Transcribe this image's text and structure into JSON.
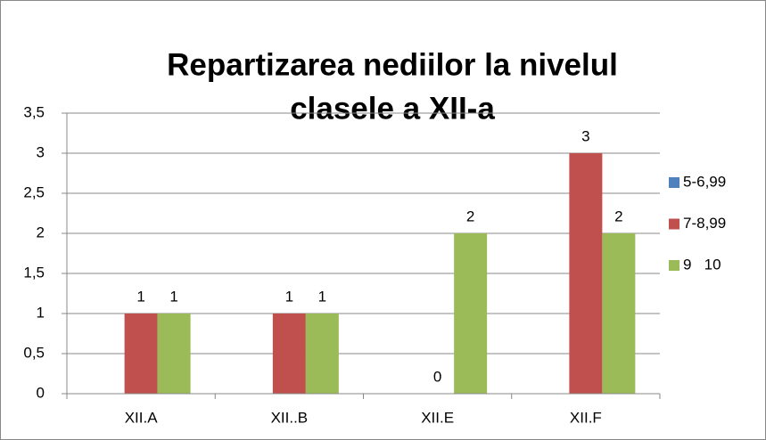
{
  "chart_data": {
    "type": "bar",
    "title": [
      "Repartizarea nediilor la nivelul",
      "clasele a XII-a"
    ],
    "categories": [
      "XII.A",
      "XII..B",
      "XII.E",
      "XII.F"
    ],
    "series": [
      {
        "name": "5-6,99",
        "color": "#4f81bd",
        "values": [
          null,
          null,
          null,
          null
        ]
      },
      {
        "name": "7-8,99",
        "color": "#c0504d",
        "values": [
          1,
          1,
          0,
          3
        ]
      },
      {
        "name": "9   10",
        "color": "#9bbb59",
        "values": [
          1,
          1,
          2,
          2
        ]
      }
    ],
    "ylim": [
      0,
      3.5
    ],
    "yticks": [
      0,
      {
        "value": 0.5,
        "label": "0,5"
      },
      1,
      {
        "value": 1.5,
        "label": "1,5"
      },
      2,
      {
        "value": 2.5,
        "label": "2,5"
      },
      3,
      {
        "value": 3.5,
        "label": "3,5"
      }
    ],
    "grid": true,
    "data_labels": true,
    "legend": "right"
  }
}
